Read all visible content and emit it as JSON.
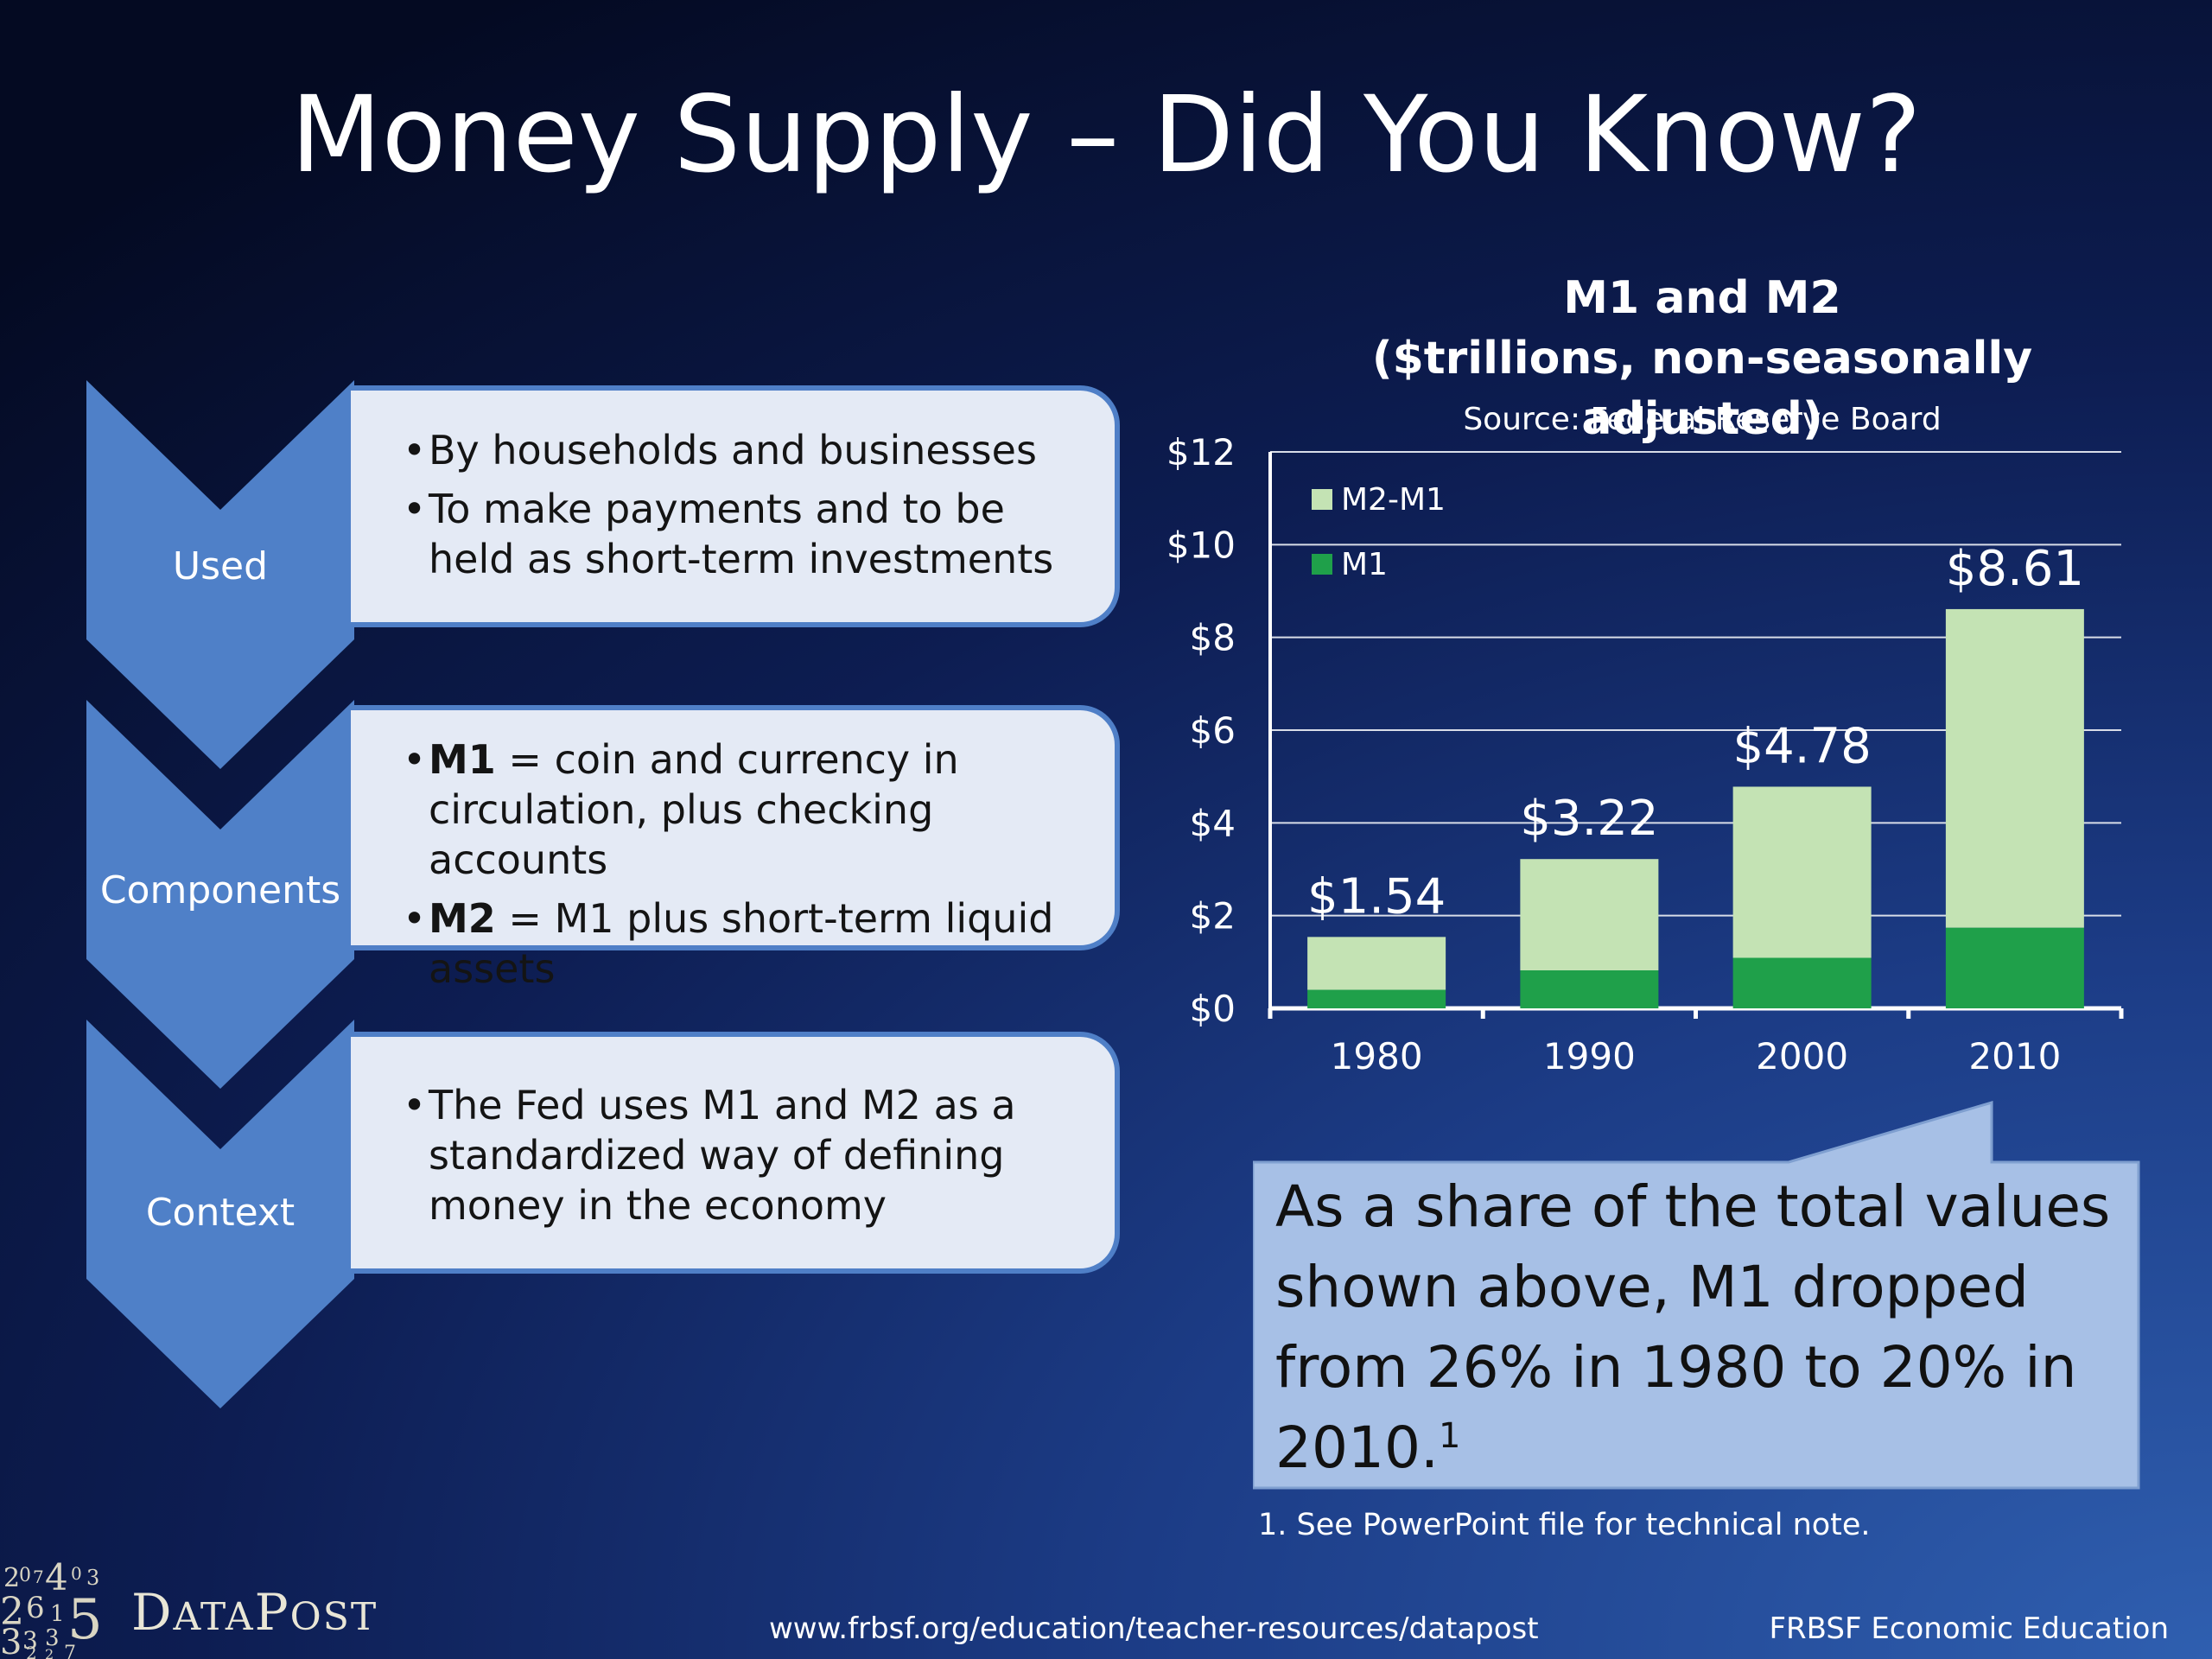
{
  "slide": {
    "title": "Money Supply – Did You Know?",
    "url": "www.frbsf.org/education/teacher-resources/datapost",
    "org": "FRBSF Economic Education",
    "logo_text": "DataPost",
    "footnote": "1.  See PowerPoint file for technical note."
  },
  "sections": [
    {
      "label": "Used",
      "bullets": [
        {
          "bold": "",
          "text": "By households and businesses"
        },
        {
          "bold": "",
          "text": "To make payments and to be held as short-term investments"
        }
      ]
    },
    {
      "label": "Components",
      "bullets": [
        {
          "bold": "M1",
          "text": " = coin and currency in circulation, plus checking accounts"
        },
        {
          "bold": "M2",
          "text": " = M1 plus short-term liquid assets"
        }
      ]
    },
    {
      "label": "Context",
      "bullets": [
        {
          "bold": "",
          "text": "The Fed uses M1 and M2 as a standardized way of defining money in the economy"
        }
      ]
    }
  ],
  "callout": {
    "text": "As a share of the total values shown above, M1 dropped from 26% in 1980 to 20% in 2010.",
    "sup": "1"
  },
  "chart_data": {
    "type": "bar",
    "stacked": true,
    "title": "M1 and M2",
    "subtitle": "($trillions, non-seasonally adjusted)",
    "source": "Source: Federal Reserve Board",
    "categories": [
      "1980",
      "1990",
      "2000",
      "2010"
    ],
    "series": [
      {
        "name": "M1",
        "values": [
          0.4,
          0.82,
          1.09,
          1.74
        ],
        "color": "#1fa04a"
      },
      {
        "name": "M2-M1",
        "values": [
          1.14,
          2.4,
          3.69,
          6.87
        ],
        "color": "#c4e3b4"
      }
    ],
    "totals": [
      1.54,
      3.22,
      4.78,
      8.61
    ],
    "total_labels": [
      "$1.54",
      "$3.22",
      "$4.78",
      "$8.61"
    ],
    "yticks": [
      0,
      2,
      4,
      6,
      8,
      10,
      12
    ],
    "ytick_labels": [
      "$0",
      "$2",
      "$4",
      "$6",
      "$8",
      "$10",
      "$12"
    ],
    "ylim": [
      0,
      12
    ],
    "grid": true,
    "legend": [
      "M2-M1",
      "M1"
    ],
    "legend_position": "top-left"
  }
}
